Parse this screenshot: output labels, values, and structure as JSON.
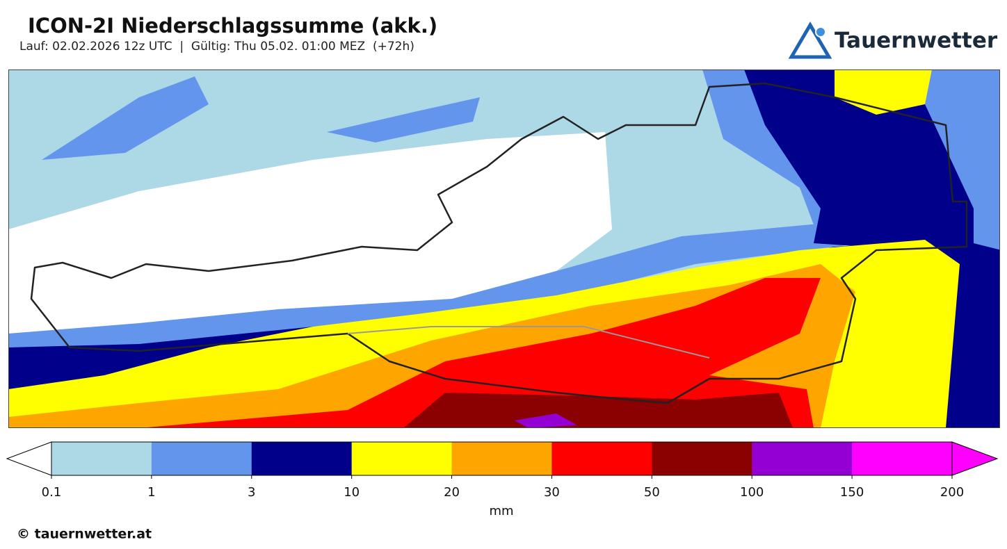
{
  "header": {
    "title": "ICON-2I Niederschlagssumme (akk.)",
    "subtitle": "Lauf: 02.02.2026 12z UTC  |  Gültig: Thu 05.02. 01:00 MEZ  (+72h)",
    "logo": "Tauernwetter"
  },
  "colorbar": {
    "ticks": [
      0.1,
      1,
      3,
      10,
      20,
      30,
      50,
      100,
      150,
      200
    ],
    "colors": [
      "#add8e6",
      "#6495ed",
      "#00008b",
      "#ffff00",
      "#ffa500",
      "#ff0000",
      "#8b0000",
      "#9400d3",
      "#ff00ff"
    ],
    "under_color": "#ffffff",
    "over_color": "#ff00ff",
    "unit": "mm"
  },
  "footer": {
    "copyright": "© tauernwetter.at"
  }
}
